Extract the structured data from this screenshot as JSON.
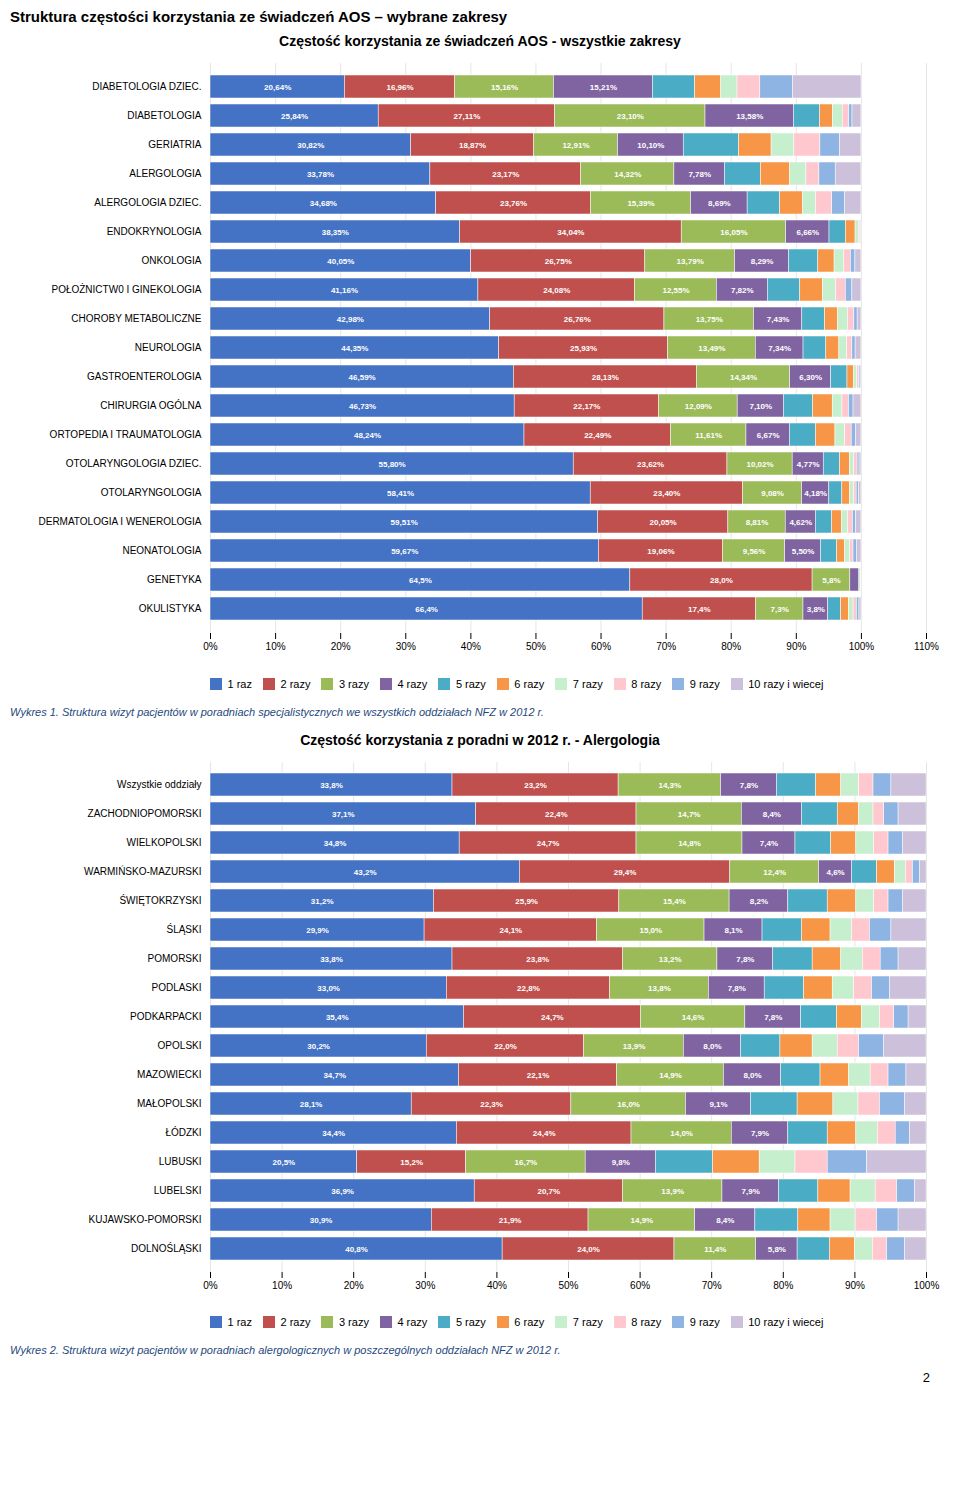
{
  "title": "Struktura częstości korzystania ze świadczeń AOS – wybrane zakresy",
  "annotations": [
    "2"
  ],
  "chart_data": [
    {
      "type": "bar",
      "orientation": "horizontal",
      "stacked": true,
      "grid": true,
      "data_labels": true,
      "legend": "bottom",
      "title": "Częstość korzystania ze świadczeń AOS - wszystkie zakresy",
      "caption": "Wykres 1. Struktura wizyt pacjentów w poradniach specjalistycznych we wszystkich oddziałach NFZ w 2012 r.",
      "categories": [
        "DIABETOLOGIA DZIEC.",
        "DIABETOLOGIA",
        "GERIATRIA",
        "ALERGOLOGIA",
        "ALERGOLOGIA DZIEC.",
        "ENDOKRYNOLOGIA",
        "ONKOLOGIA",
        "POŁOŻNICTW0 I GINEKOLOGIA",
        "CHOROBY METABOLICZNE",
        "NEUROLOGIA",
        "GASTROENTEROLOGIA",
        "CHIRURGIA OGÓLNA",
        "ORTOPEDIA I TRAUMATOLOGIA",
        "OTOLARYNGOLOGIA DZIEC.",
        "OTOLARYNGOLOGIA",
        "DERMATOLOGIA I WENEROLOGIA",
        "NEONATOLOGIA",
        "GENETYKA",
        "OKULISTYKA"
      ],
      "series": [
        {
          "name": "1 raz",
          "color": "#4472C4",
          "values": [
            20.64,
            25.84,
            30.82,
            33.78,
            34.68,
            38.35,
            40.05,
            41.16,
            42.98,
            44.35,
            46.59,
            46.73,
            48.24,
            55.8,
            58.41,
            59.51,
            59.67,
            64.5,
            66.4
          ],
          "value_labels": [
            "20,64%",
            "25,84%",
            "30,82%",
            "33,78%",
            "34,68%",
            "38,35%",
            "40,05%",
            "41,16%",
            "42,98%",
            "44,35%",
            "46,59%",
            "46,73%",
            "48,24%",
            "55,80%",
            "58,41%",
            "59,51%",
            "59,67%",
            "64,5%",
            "66,4%"
          ]
        },
        {
          "name": "2 razy",
          "color": "#C0504D",
          "values": [
            16.96,
            27.11,
            18.87,
            23.17,
            23.76,
            34.04,
            26.75,
            24.08,
            26.76,
            25.93,
            28.13,
            22.17,
            22.49,
            23.62,
            23.4,
            20.05,
            19.06,
            28.0,
            17.4
          ],
          "value_labels": [
            "16,96%",
            "27,11%",
            "18,87%",
            "23,17%",
            "23,76%",
            "34,04%",
            "26,75%",
            "24,08%",
            "26,76%",
            "25,93%",
            "28,13%",
            "22,17%",
            "22,49%",
            "23,62%",
            "23,40%",
            "20,05%",
            "19,06%",
            "28,0%",
            "17,4%"
          ]
        },
        {
          "name": "3 razy",
          "color": "#9BBB59",
          "values": [
            15.16,
            23.1,
            12.91,
            14.32,
            15.39,
            16.05,
            13.79,
            12.55,
            13.75,
            13.49,
            14.34,
            12.09,
            11.61,
            10.02,
            9.08,
            8.81,
            9.56,
            5.8,
            7.3
          ],
          "value_labels": [
            "15,16%",
            "23,10%",
            "12,91%",
            "14,32%",
            "15,39%",
            "16,05%",
            "13,79%",
            "12,55%",
            "13,75%",
            "13,49%",
            "14,34%",
            "12,09%",
            "11,61%",
            "10,02%",
            "9,08%",
            "8,81%",
            "9,56%",
            "5,8%",
            "7,3%"
          ]
        },
        {
          "name": "4 razy",
          "color": "#8064A2",
          "values": [
            15.21,
            13.58,
            10.1,
            7.78,
            8.69,
            6.66,
            8.29,
            7.82,
            7.43,
            7.34,
            6.3,
            7.1,
            6.67,
            4.77,
            4.18,
            4.62,
            5.5,
            1.3,
            3.8
          ],
          "value_labels": [
            "15,21%",
            "13,58%",
            "10,10%",
            "7,78%",
            "8,69%",
            "6,66%",
            "8,29%",
            "7,82%",
            "7,43%",
            "7,34%",
            "6,30%",
            "7,10%",
            "6,67%",
            "4,77%",
            "4,18%",
            "4,62%",
            "5,50%",
            null,
            "3,8%"
          ]
        },
        {
          "name": "5 razy",
          "color": "#4BACC6",
          "values": [
            6.5,
            4.0,
            8.5,
            5.5,
            5.0,
            2.5,
            4.5,
            5.0,
            3.5,
            3.5,
            2.5,
            4.5,
            4.0,
            2.5,
            2.0,
            2.5,
            2.5,
            0.2,
            2.0
          ]
        },
        {
          "name": "6 razy",
          "color": "#F79646",
          "values": [
            4.0,
            2.0,
            5.0,
            4.5,
            3.5,
            1.5,
            2.5,
            3.5,
            2.0,
            2.0,
            1.0,
            3.0,
            3.0,
            1.5,
            1.2,
            1.5,
            1.2,
            0.1,
            1.2
          ]
        },
        {
          "name": "7 razy",
          "color": "#C6EFCE",
          "values": [
            2.5,
            1.5,
            3.5,
            2.5,
            2.0,
            0.5,
            1.5,
            2.0,
            1.5,
            1.2,
            0.5,
            1.5,
            1.5,
            0.7,
            0.6,
            1.0,
            0.8,
            0.05,
            0.7
          ]
        },
        {
          "name": "8 razy",
          "color": "#FFC7CE",
          "values": [
            3.5,
            1.0,
            4.0,
            2.0,
            2.5,
            0.2,
            1.0,
            1.5,
            1.0,
            0.8,
            0.3,
            1.0,
            1.0,
            0.5,
            0.4,
            0.7,
            0.5,
            0.02,
            0.5
          ]
        },
        {
          "name": "9 razy",
          "color": "#8DB4E2",
          "values": [
            5.0,
            0.5,
            3.0,
            2.5,
            2.0,
            0.1,
            0.7,
            1.0,
            0.5,
            0.5,
            0.2,
            0.7,
            0.7,
            0.3,
            0.4,
            0.5,
            0.5,
            0.01,
            0.4
          ]
        },
        {
          "name": "10 razy i wiecej",
          "color": "#CCC0DA",
          "values": [
            10.54,
            1.37,
            3.3,
            3.95,
            2.48,
            0.1,
            0.92,
            1.39,
            0.58,
            0.89,
            0.14,
            1.21,
            0.79,
            0.29,
            0.33,
            0.81,
            0.71,
            0.02,
            0.3
          ]
        }
      ],
      "xlim": [
        0,
        110
      ],
      "xticks": [
        {
          "value": 0,
          "label": "0%"
        },
        {
          "value": 10,
          "label": "10%"
        },
        {
          "value": 20,
          "label": "20%"
        },
        {
          "value": 30,
          "label": "30%"
        },
        {
          "value": 40,
          "label": "40%"
        },
        {
          "value": 50,
          "label": "50%"
        },
        {
          "value": 60,
          "label": "60%"
        },
        {
          "value": 70,
          "label": "70%"
        },
        {
          "value": 80,
          "label": "80%"
        },
        {
          "value": 90,
          "label": "90%"
        },
        {
          "value": 100,
          "label": "100%"
        },
        {
          "value": 110,
          "label": "110%"
        }
      ]
    },
    {
      "type": "bar",
      "orientation": "horizontal",
      "stacked": true,
      "grid": true,
      "data_labels": true,
      "legend": "bottom",
      "title": "Częstość korzystania z poradni w 2012 r. - Alergologia",
      "caption": "Wykres 2. Struktura wizyt pacjentów w poradniach alergologicznych w poszczególnych oddziałach NFZ w 2012 r.",
      "categories": [
        "Wszystkie oddziały",
        "ZACHODNIOPOMORSKI",
        "WIELKOPOLSKI",
        "WARMIŃSKO-MAZURSKI",
        "ŚWIĘTOKRZYSKI",
        "ŚLĄSKI",
        "POMORSKI",
        "PODLASKI",
        "PODKARPACKI",
        "OPOLSKI",
        "MAZOWIECKI",
        "MAŁOPOLSKI",
        "ŁÓDZKI",
        "LUBUSKI",
        "LUBELSKI",
        "KUJAWSKO-POMORSKI",
        "DOLNOŚLĄSKI"
      ],
      "series": [
        {
          "name": "1 raz",
          "color": "#4472C4",
          "values": [
            33.8,
            37.1,
            34.8,
            43.2,
            31.2,
            29.9,
            33.8,
            33.0,
            35.4,
            30.2,
            34.7,
            28.1,
            34.4,
            20.5,
            36.9,
            30.9,
            40.8
          ],
          "value_labels": [
            "33,8%",
            "37,1%",
            "34,8%",
            "43,2%",
            "31,2%",
            "29,9%",
            "33,8%",
            "33,0%",
            "35,4%",
            "30,2%",
            "34,7%",
            "28,1%",
            "34,4%",
            "20,5%",
            "36,9%",
            "30,9%",
            "40,8%"
          ]
        },
        {
          "name": "2 razy",
          "color": "#C0504D",
          "values": [
            23.2,
            22.4,
            24.7,
            29.4,
            25.9,
            24.1,
            23.8,
            22.8,
            24.7,
            22.0,
            22.1,
            22.3,
            24.4,
            15.2,
            20.7,
            21.9,
            24.0
          ],
          "value_labels": [
            "23,2%",
            "22,4%",
            "24,7%",
            "29,4%",
            "25,9%",
            "24,1%",
            "23,8%",
            "22,8%",
            "24,7%",
            "22,0%",
            "22,1%",
            "22,3%",
            "24,4%",
            "15,2%",
            "20,7%",
            "21,9%",
            "24,0%"
          ]
        },
        {
          "name": "3 razy",
          "color": "#9BBB59",
          "values": [
            14.3,
            14.7,
            14.8,
            12.4,
            15.4,
            15.0,
            13.2,
            13.8,
            14.6,
            13.9,
            14.9,
            16.0,
            14.0,
            16.7,
            13.9,
            14.9,
            11.4
          ],
          "value_labels": [
            "14,3%",
            "14,7%",
            "14,8%",
            "12,4%",
            "15,4%",
            "15,0%",
            "13,2%",
            "13,8%",
            "14,6%",
            "13,9%",
            "14,9%",
            "16,0%",
            "14,0%",
            "16,7%",
            "13,9%",
            "14,9%",
            "11,4%"
          ]
        },
        {
          "name": "4 razy",
          "color": "#8064A2",
          "values": [
            7.8,
            8.4,
            7.4,
            4.6,
            8.2,
            8.1,
            7.8,
            7.8,
            7.8,
            8.0,
            8.0,
            9.1,
            7.9,
            9.8,
            7.9,
            8.4,
            5.8
          ],
          "value_labels": [
            "7,8%",
            "8,4%",
            "7,4%",
            "4,6%",
            "8,2%",
            "8,1%",
            "7,8%",
            "7,8%",
            "7,8%",
            "8,0%",
            "8,0%",
            "9,1%",
            "7,9%",
            "9,8%",
            "7,9%",
            "8,4%",
            "5,8%"
          ]
        },
        {
          "name": "5 razy",
          "color": "#4BACC6",
          "values": [
            5.5,
            5.0,
            5.0,
            3.5,
            5.5,
            5.5,
            5.5,
            5.5,
            5.0,
            5.5,
            5.5,
            6.5,
            5.5,
            8.0,
            5.5,
            6.0,
            4.5
          ]
        },
        {
          "name": "6 razy",
          "color": "#F79646",
          "values": [
            3.5,
            3.0,
            3.5,
            2.5,
            4.0,
            4.0,
            4.0,
            4.0,
            3.5,
            4.5,
            4.0,
            5.0,
            4.0,
            6.5,
            4.5,
            4.5,
            3.5
          ]
        },
        {
          "name": "7 razy",
          "color": "#C6EFCE",
          "values": [
            2.5,
            2.0,
            2.5,
            1.5,
            2.5,
            3.0,
            3.0,
            3.0,
            2.5,
            3.5,
            3.0,
            3.5,
            3.0,
            5.0,
            3.5,
            3.5,
            2.5
          ]
        },
        {
          "name": "8 razy",
          "color": "#FFC7CE",
          "values": [
            2.0,
            1.5,
            2.0,
            1.0,
            2.0,
            2.5,
            2.5,
            2.5,
            2.0,
            3.0,
            2.5,
            3.0,
            2.5,
            4.5,
            3.0,
            3.0,
            2.0
          ]
        },
        {
          "name": "9 razy",
          "color": "#8DB4E2",
          "values": [
            2.5,
            2.0,
            2.0,
            1.0,
            2.0,
            3.0,
            2.5,
            2.5,
            2.0,
            3.5,
            2.5,
            3.5,
            2.0,
            5.5,
            2.5,
            3.0,
            2.5
          ]
        },
        {
          "name": "10 razy i wiecej",
          "color": "#CCC0DA",
          "values": [
            4.9,
            3.9,
            3.3,
            0.9,
            3.3,
            4.9,
            3.9,
            5.1,
            2.5,
            5.9,
            2.8,
            3.0,
            2.3,
            8.3,
            1.6,
            3.9,
            3.0
          ]
        }
      ],
      "xlim": [
        0,
        100
      ],
      "xticks": [
        {
          "value": 0,
          "label": "0%"
        },
        {
          "value": 10,
          "label": "10%"
        },
        {
          "value": 20,
          "label": "20%"
        },
        {
          "value": 30,
          "label": "30%"
        },
        {
          "value": 40,
          "label": "40%"
        },
        {
          "value": 50,
          "label": "50%"
        },
        {
          "value": 60,
          "label": "60%"
        },
        {
          "value": 70,
          "label": "70%"
        },
        {
          "value": 80,
          "label": "80%"
        },
        {
          "value": 90,
          "label": "90%"
        },
        {
          "value": 100,
          "label": "100%"
        }
      ]
    }
  ]
}
